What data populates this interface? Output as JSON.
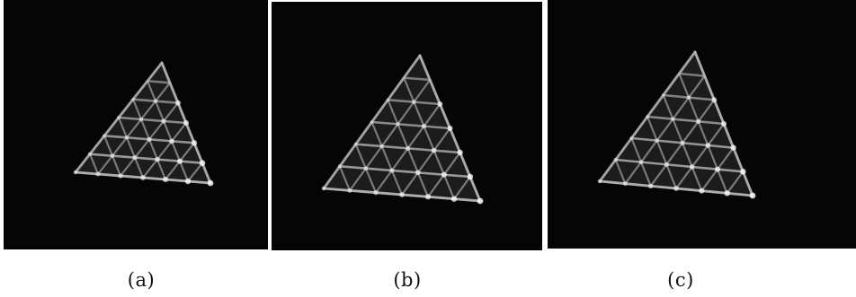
{
  "figure": {
    "panels": [
      {
        "caption": "(a)"
      },
      {
        "caption": "(b)"
      },
      {
        "caption": "(c)"
      }
    ]
  },
  "colors": {
    "background": "#050505",
    "lattice": "#b9b9b9",
    "highlight": "#ffffff"
  }
}
